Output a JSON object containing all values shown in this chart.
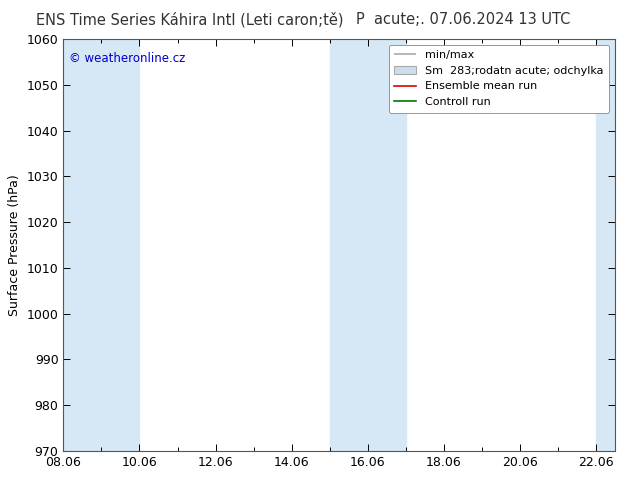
{
  "title_left": "ENS Time Series Káhira Intl (Leti caron;tě)",
  "title_right": "P  acute;. 07.06.2024 13 UTC",
  "ylabel": "Surface Pressure (hPa)",
  "ylim": [
    970,
    1060
  ],
  "yticks": [
    970,
    980,
    990,
    1000,
    1010,
    1020,
    1030,
    1040,
    1050,
    1060
  ],
  "xlim_start": 0.0,
  "xlim_end": 14.5,
  "xtick_labels": [
    "08.06",
    "10.06",
    "12.06",
    "14.06",
    "16.06",
    "18.06",
    "20.06",
    "22.06"
  ],
  "xtick_positions": [
    0,
    2,
    4,
    6,
    8,
    10,
    12,
    14
  ],
  "shaded_bands": [
    {
      "x_start": 0.0,
      "x_end": 1.3
    },
    {
      "x_start": 1.3,
      "x_end": 2.0
    },
    {
      "x_start": 7.0,
      "x_end": 9.0
    },
    {
      "x_start": 14.0,
      "x_end": 14.5
    }
  ],
  "band_color": "#d6e8f5",
  "watermark": "© weatheronline.cz",
  "watermark_color": "#0000cc",
  "background_color": "#ffffff",
  "plot_bg_color": "#ffffff",
  "title_fontsize": 10.5,
  "axis_label_fontsize": 9,
  "tick_fontsize": 9,
  "legend_fontsize": 8
}
